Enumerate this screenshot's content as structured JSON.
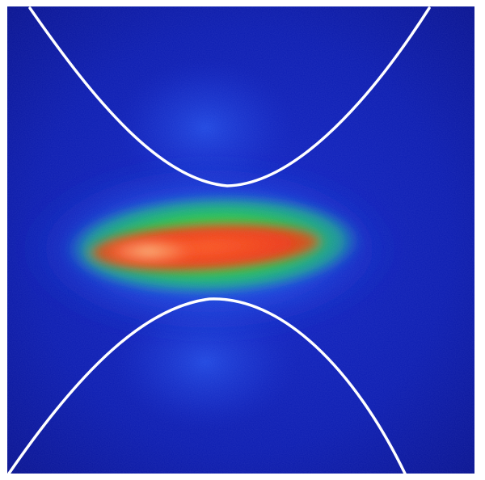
{
  "image": {
    "description_colors": {
      "background": "#0a1aa8",
      "background_edge": "#071080",
      "low_intensity": "#1f5cff",
      "mid_intensity": "#22c84a",
      "high_intensity": "#ff3a10",
      "peak_intensity": "#ffb070",
      "boundary_curve": "#ffffff"
    }
  }
}
